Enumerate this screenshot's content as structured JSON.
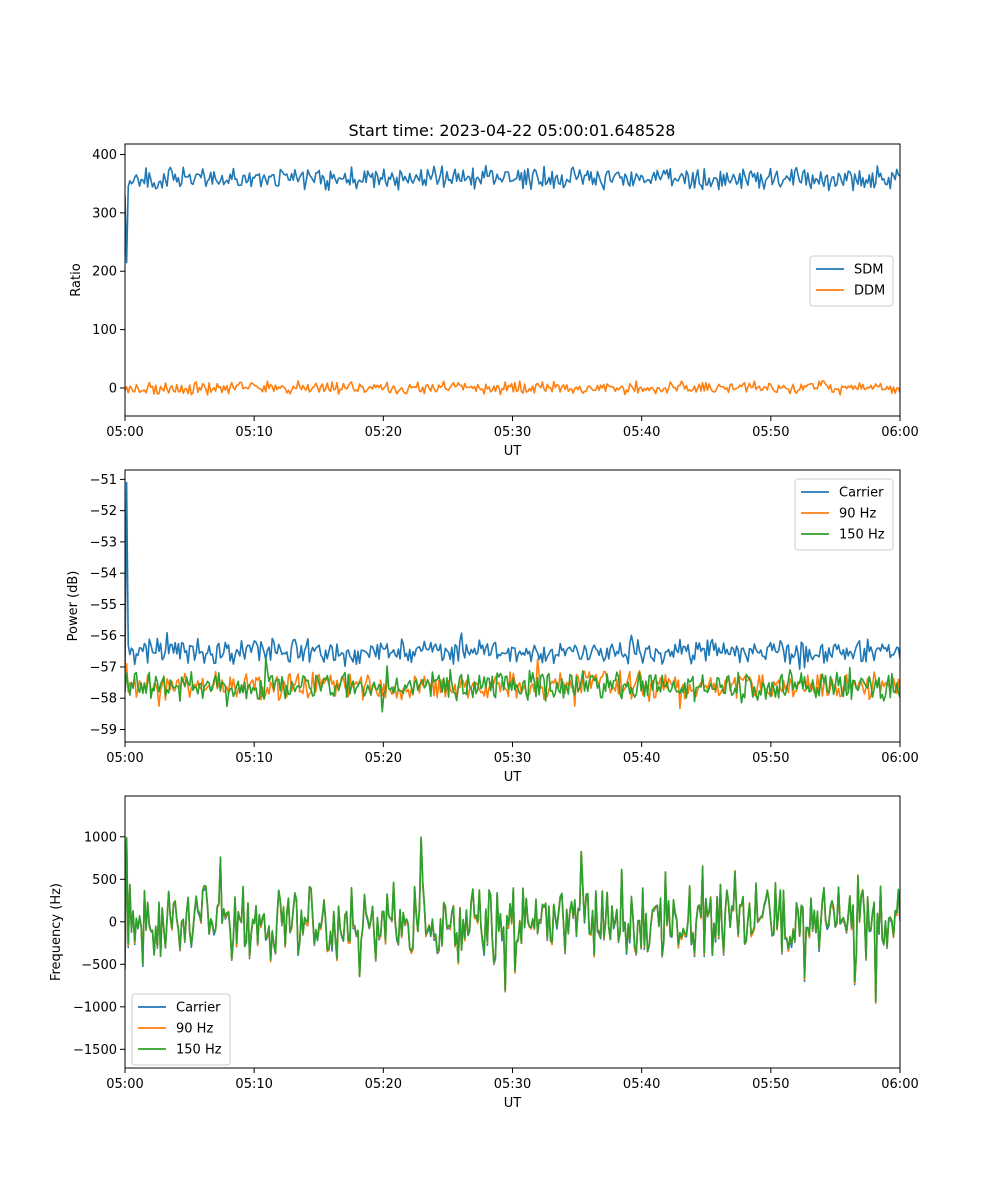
{
  "figure": {
    "title": "Start time: 2023-04-22 05:00:01.648528"
  },
  "chart_data": [
    {
      "type": "line",
      "title": "Start time: 2023-04-22 05:00:01.648528",
      "xlabel": "UT",
      "ylabel": "Ratio",
      "x_range_minutes": [
        0,
        60
      ],
      "x_ticks": [
        "05:00",
        "05:10",
        "05:20",
        "05:30",
        "05:40",
        "05:50",
        "06:00"
      ],
      "ylim": [
        -48,
        418
      ],
      "y_ticks": [
        0,
        100,
        200,
        300,
        400
      ],
      "grid": false,
      "legend": "center-right",
      "series": [
        {
          "name": "SDM",
          "color": "#1f77b4",
          "base": 360,
          "noise": 14,
          "spike": 8,
          "start_values": [
            330,
            215,
            345,
            355,
            350
          ],
          "range": [
            320,
            395
          ]
        },
        {
          "name": "DDM",
          "color": "#ff7f0e",
          "base": 0,
          "noise": 8,
          "spike": 6,
          "start_values": [
            -5,
            2,
            -8,
            3,
            0
          ],
          "range": [
            -25,
            33
          ]
        }
      ]
    },
    {
      "type": "line",
      "xlabel": "UT",
      "ylabel": "Power (dB)",
      "x_range_minutes": [
        0,
        60
      ],
      "x_ticks": [
        "05:00",
        "05:10",
        "05:20",
        "05:30",
        "05:40",
        "05:50",
        "06:00"
      ],
      "ylim": [
        -59.4,
        -50.7
      ],
      "y_ticks": [
        -59,
        -58,
        -57,
        -56,
        -55,
        -54,
        -53,
        -52,
        -51
      ],
      "grid": false,
      "legend": "upper-right",
      "series": [
        {
          "name": "Carrier",
          "color": "#1f77b4",
          "base": -56.5,
          "noise": 0.28,
          "spike": 0.4,
          "start_values": [
            -57.1,
            -51.1,
            -56.3,
            -56.6,
            -56.4
          ],
          "range": [
            -57.2,
            -55.8
          ]
        },
        {
          "name": "90 Hz",
          "color": "#ff7f0e",
          "base": -57.6,
          "noise": 0.32,
          "spike": 0.5,
          "start_values": [
            -57.3,
            -56.9,
            -57.8,
            -57.5,
            -57.6
          ],
          "range": [
            -58.9,
            -56.6
          ]
        },
        {
          "name": "150 Hz",
          "color": "#2ca02c",
          "base": -57.6,
          "noise": 0.34,
          "spike": 0.5,
          "start_values": [
            -57.8,
            -57.2,
            -57.6,
            -57.9,
            -57.5
          ],
          "range": [
            -59.0,
            -56.4
          ]
        }
      ]
    },
    {
      "type": "line",
      "xlabel": "UT",
      "ylabel": "Frequency (Hz)",
      "x_range_minutes": [
        0,
        60
      ],
      "x_ticks": [
        "05:00",
        "05:10",
        "05:20",
        "05:30",
        "05:40",
        "05:50",
        "06:00"
      ],
      "ylim": [
        -1720,
        1480
      ],
      "y_ticks": [
        -1500,
        -1000,
        -500,
        0,
        500,
        1000
      ],
      "grid": false,
      "legend": "lower-left",
      "series": [
        {
          "name": "Carrier",
          "color": "#1f77b4",
          "base": -20,
          "noise": 320,
          "spike": 700,
          "start_values": [
            -560,
            950,
            -300,
            400
          ],
          "range": [
            -1580,
            1300
          ]
        },
        {
          "name": "90 Hz",
          "color": "#ff7f0e",
          "base": -10,
          "noise": 320,
          "spike": 700,
          "start_values": [
            -520,
            970,
            -280,
            420
          ],
          "range": [
            -1550,
            1320
          ]
        },
        {
          "name": "150 Hz",
          "color": "#2ca02c",
          "base": 0,
          "noise": 320,
          "spike": 700,
          "start_values": [
            -480,
            990,
            -260,
            440
          ],
          "range": [
            -1500,
            1350
          ]
        }
      ]
    }
  ]
}
